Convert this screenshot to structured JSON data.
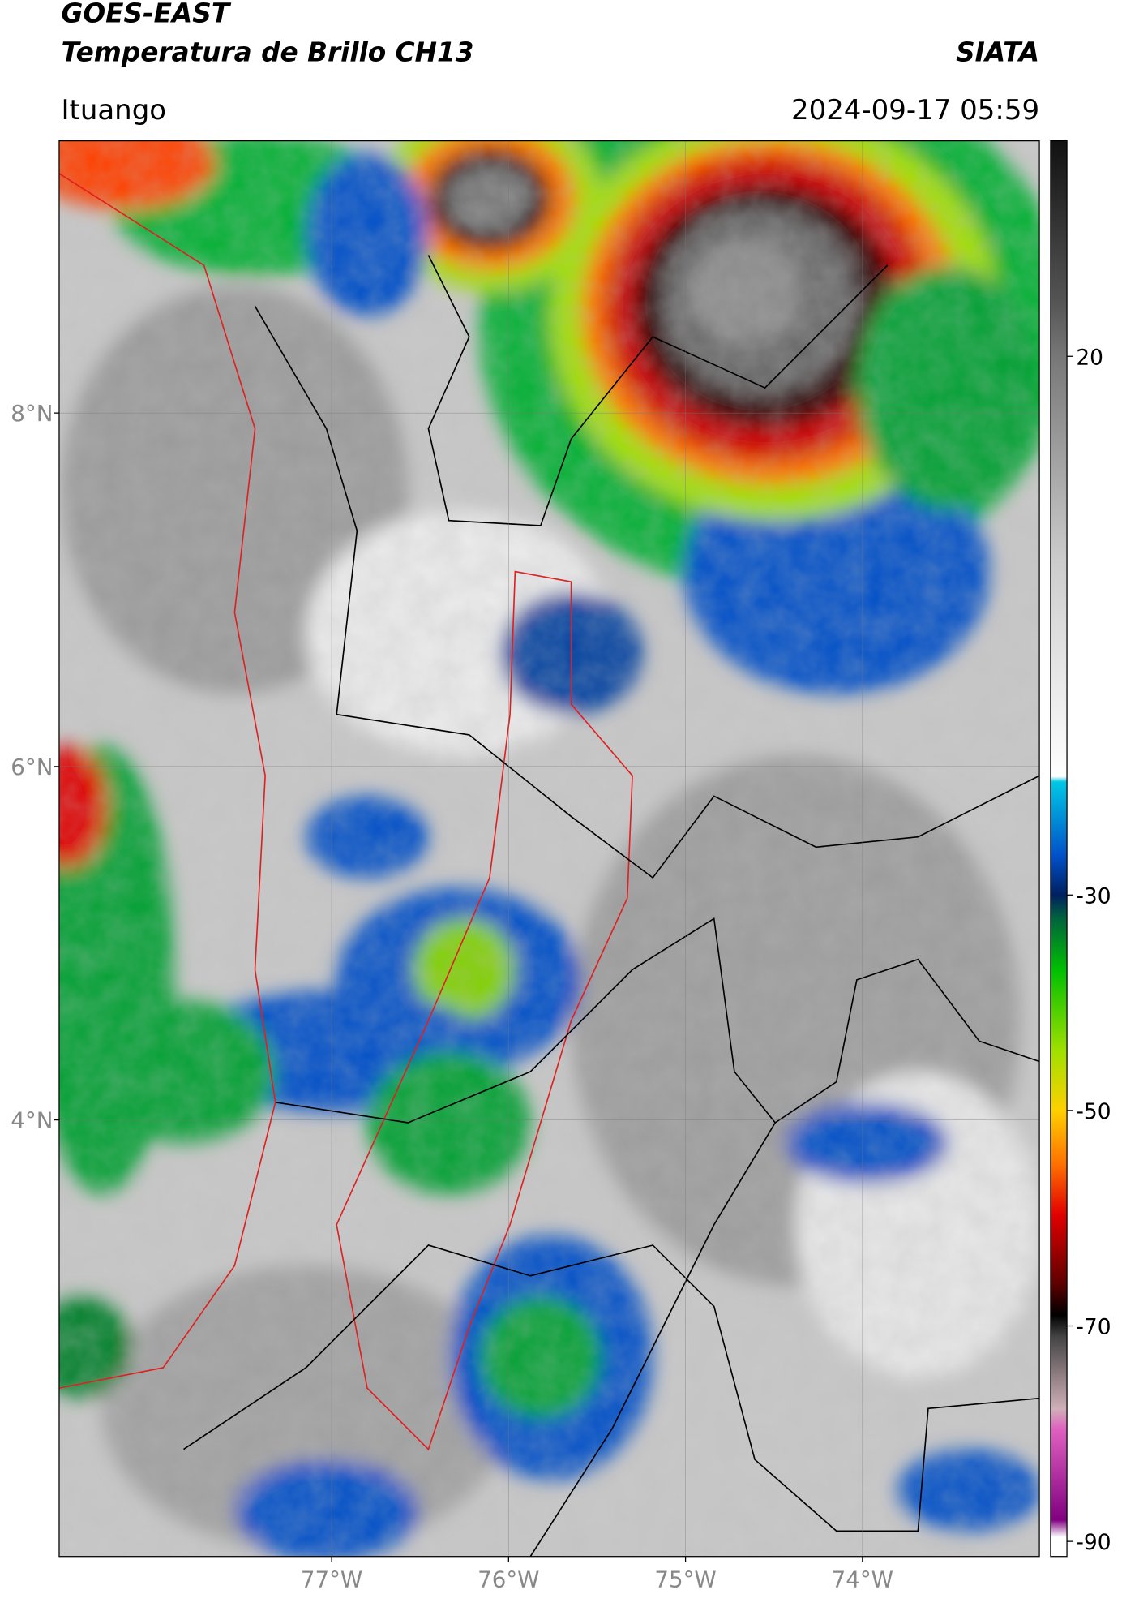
{
  "header": {
    "title": "GOES-EAST",
    "subtitle": "Temperatura de Brillo CH13",
    "brand": "SIATA",
    "location": "Ituango",
    "datetime": "2024-09-17 05:59"
  },
  "map": {
    "lat_lim": [
      1.53,
      9.54
    ],
    "lon_lim": [
      -78.54,
      -73.0
    ],
    "grid": true,
    "lat_ticks": [
      {
        "value": 8,
        "label": "8°N"
      },
      {
        "value": 6,
        "label": "6°N"
      },
      {
        "value": 4,
        "label": "4°N"
      }
    ],
    "lon_ticks": [
      {
        "value": -77,
        "label": "77°W"
      },
      {
        "value": -76,
        "label": "76°W"
      },
      {
        "value": -75,
        "label": "75°W"
      },
      {
        "value": -74,
        "label": "74°W"
      }
    ]
  },
  "colorbar": {
    "lim": [
      -91.4,
      40
    ],
    "ticks": [
      20,
      -30,
      -50,
      -70,
      -90
    ],
    "stops": [
      {
        "value": 40,
        "color": "#111111"
      },
      {
        "value": 25,
        "color": "#555555"
      },
      {
        "value": 20,
        "color": "#777777"
      },
      {
        "value": 1,
        "color": "#cccccc"
      },
      {
        "value": -19,
        "color": "#ffffff"
      },
      {
        "value": -19.5,
        "color": "#00c8e6"
      },
      {
        "value": -26.4,
        "color": "#0050c8"
      },
      {
        "value": -30,
        "color": "#002060"
      },
      {
        "value": -32,
        "color": "#006040"
      },
      {
        "value": -37,
        "color": "#00c000"
      },
      {
        "value": -44.5,
        "color": "#a0e000"
      },
      {
        "value": -50,
        "color": "#ffd000"
      },
      {
        "value": -55,
        "color": "#ff7000"
      },
      {
        "value": -59.7,
        "color": "#e00000"
      },
      {
        "value": -66,
        "color": "#600000"
      },
      {
        "value": -69,
        "color": "#000000"
      },
      {
        "value": -71,
        "color": "#444444"
      },
      {
        "value": -77.7,
        "color": "#d0b0b8"
      },
      {
        "value": -79.6,
        "color": "#e060c0"
      },
      {
        "value": -88,
        "color": "#800080"
      },
      {
        "value": -89.6,
        "color": "#ffffff"
      }
    ]
  }
}
